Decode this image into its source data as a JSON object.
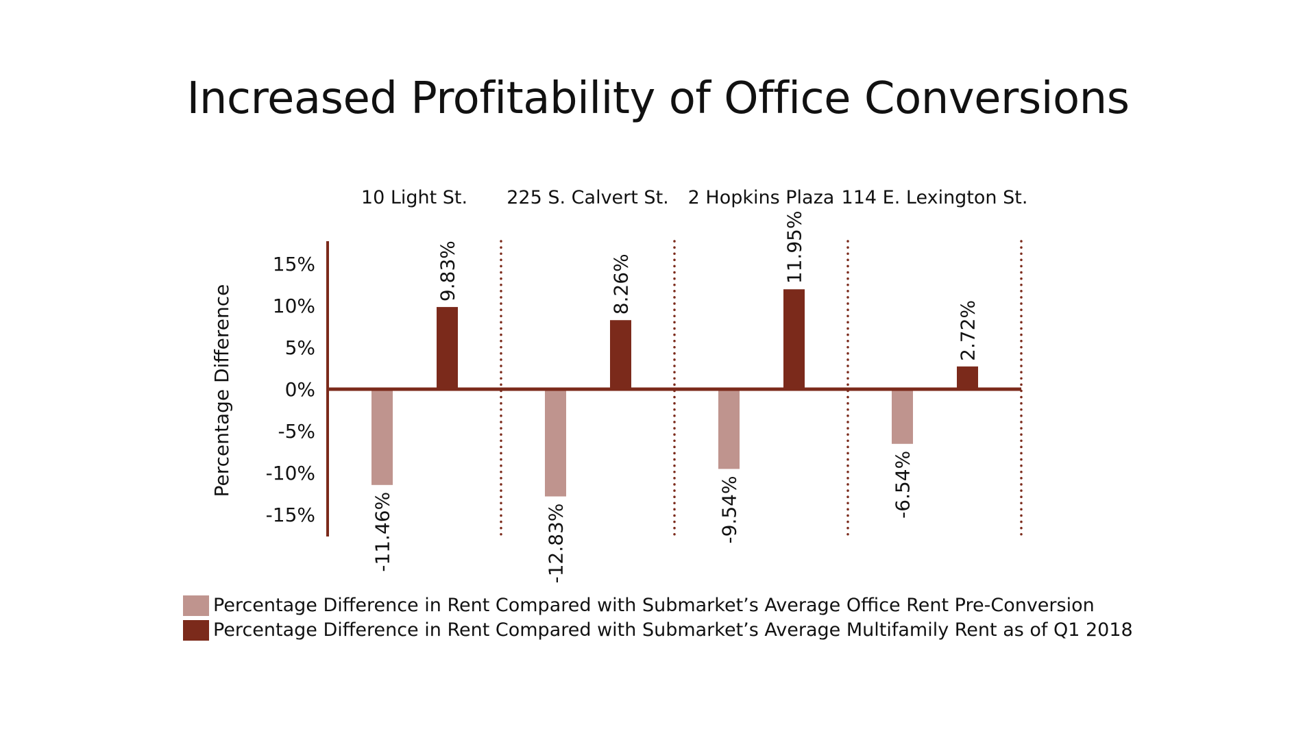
{
  "chart_data": {
    "type": "bar",
    "title": "Increased Profitability of Office Conversions",
    "ylabel": "Percentage Difference",
    "ylim": [
      -18,
      18
    ],
    "y_ticks": [
      15,
      10,
      5,
      0,
      -5,
      -10,
      -15
    ],
    "y_tick_labels": [
      "15%",
      "10%",
      "5%",
      "0%",
      "-5%",
      "-10%",
      "-15%"
    ],
    "categories": [
      "10 Light St.",
      "225 S. Calvert St.",
      "2 Hopkins Plaza",
      "114 E. Lexington St."
    ],
    "series": [
      {
        "name": "Percentage Difference in Rent Compared with Submarket’s Average Office Rent Pre-Conversion",
        "values": [
          -11.46,
          -12.83,
          -9.54,
          -6.54
        ],
        "labels": [
          "-11.46%",
          "-12.83%",
          "-9.54%",
          "-6.54%"
        ],
        "color": "#BF948E"
      },
      {
        "name": "Percentage Difference in Rent Compared with Submarket’s Average Multifamily Rent as of Q1 2018",
        "values": [
          9.83,
          8.26,
          11.95,
          2.72
        ],
        "labels": [
          "9.83%",
          "8.26%",
          "11.95%",
          "2.72%"
        ],
        "color": "#7B2A1B"
      }
    ],
    "legend_position": "bottom-left",
    "grid": false,
    "accent_color": "#7B2A1B",
    "category_separators": "dotted"
  }
}
